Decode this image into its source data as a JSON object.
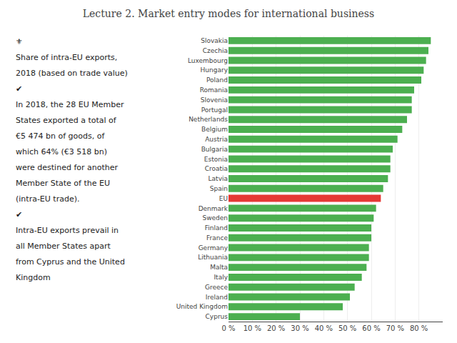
{
  "chart_data": {
    "type": "bar",
    "orientation": "horizontal",
    "title": "Lecture 2. Market entry modes for international business",
    "categories": [
      "Slovakia",
      "Czechia",
      "Luxembourg",
      "Hungary",
      "Poland",
      "Romania",
      "Slovenia",
      "Portugal",
      "Netherlands",
      "Belgium",
      "Austria",
      "Bulgaria",
      "Estonia",
      "Croatia",
      "Latvia",
      "Spain",
      "EU",
      "Denmark",
      "Sweden",
      "Finland",
      "France",
      "Germany",
      "Lithuania",
      "Malta",
      "Italy",
      "Greece",
      "Ireland",
      "United Kingdom",
      "Cyprus"
    ],
    "values": [
      85,
      84,
      83,
      82,
      81,
      78,
      77,
      77,
      75,
      73,
      71,
      69,
      68,
      68,
      67,
      65,
      64,
      62,
      61,
      60,
      60,
      59,
      59,
      58,
      56,
      53,
      51,
      48,
      30
    ],
    "colors": [
      "#4CAF50",
      "#4CAF50",
      "#4CAF50",
      "#4CAF50",
      "#4CAF50",
      "#4CAF50",
      "#4CAF50",
      "#4CAF50",
      "#4CAF50",
      "#4CAF50",
      "#4CAF50",
      "#4CAF50",
      "#4CAF50",
      "#4CAF50",
      "#4CAF50",
      "#4CAF50",
      "#E53935",
      "#4CAF50",
      "#4CAF50",
      "#4CAF50",
      "#4CAF50",
      "#4CAF50",
      "#4CAF50",
      "#4CAF50",
      "#4CAF50",
      "#4CAF50",
      "#4CAF50",
      "#4CAF50",
      "#4CAF50"
    ],
    "xlim": [
      0,
      90
    ],
    "xticks": [
      {
        "value": 0,
        "label": "0 %"
      },
      {
        "value": 10,
        "label": "10 %"
      },
      {
        "value": 20,
        "label": "20 %"
      },
      {
        "value": 30,
        "label": "30 %"
      },
      {
        "value": 40,
        "label": "40 %"
      },
      {
        "value": 50,
        "label": "50 %"
      },
      {
        "value": 60,
        "label": "60 %"
      },
      {
        "value": 70,
        "label": "70 %"
      },
      {
        "value": 80,
        "label": "80 %"
      }
    ],
    "grid": true,
    "annotations": [
      "⚜",
      "Share of intra-EU exports,",
      "2018 (based on trade value)",
      "✔",
      "In 2018, the 28 EU Member",
      "States exported a total of",
      "€5 474 bn of goods, of",
      "which 64% (€3 518 bn)",
      "were destined for another",
      "Member State of the EU",
      "(intra-EU trade).",
      "✔",
      "Intra-EU exports prevail in",
      "all Member States apart",
      "from Cyprus and the United",
      "Kingdom"
    ]
  }
}
